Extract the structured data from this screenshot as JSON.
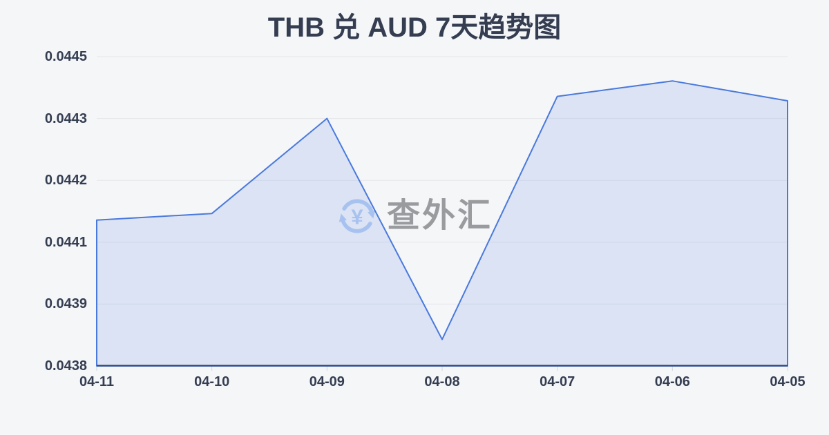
{
  "page": {
    "background": "#f4f6f8"
  },
  "watermark": {
    "text": "查外汇",
    "symbol": "¥"
  },
  "chart_data": {
    "type": "area",
    "title": "THB 兑 AUD 7天趋势图",
    "categories": [
      "04-11",
      "04-10",
      "04-09",
      "04-08",
      "04-07",
      "04-06",
      "04-05"
    ],
    "values": [
      0.04411,
      0.044125,
      0.04434,
      0.04384,
      0.04439,
      0.044425,
      0.04438
    ],
    "xlabel": "",
    "ylabel": "",
    "ylim": [
      0.04378,
      0.04448
    ],
    "ytick_labels": [
      "0.0438",
      "0.0439",
      "0.0441",
      "0.0442",
      "0.0443",
      "0.0445"
    ],
    "grid": true,
    "legend": false,
    "colors": {
      "line": "#4a79dc",
      "fill": "rgba(96,138,224,0.17)",
      "axis_line": "#3b4660",
      "grid": "#e4e6eb",
      "tick": "#d3d6dc",
      "label": "#353d51",
      "watermark_icon": "#a8c2f0",
      "watermark_text": "#9a9b9e"
    }
  }
}
